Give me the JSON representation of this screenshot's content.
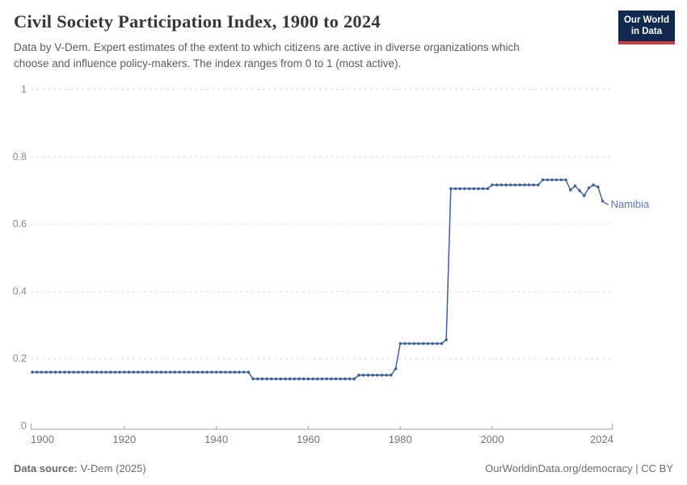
{
  "header": {
    "title": "Civil Society Participation Index, 1900 to 2024",
    "subtitle_lines": [
      "Data by V-Dem. Expert estimates of the extent to which citizens are active in diverse organizations which",
      "choose and influence policy-makers. The index ranges from 0 to 1 (most active)."
    ]
  },
  "logo": {
    "line1": "Our World",
    "line2": "in Data",
    "bg_color": "#0f2a4e",
    "accent_color": "#cc3b44"
  },
  "chart_data": {
    "type": "line",
    "title": "Civil Society Participation Index, 1900 to 2024",
    "xlim": [
      1900,
      2024
    ],
    "ylim": [
      0,
      1
    ],
    "xticks": [
      1900,
      1920,
      1940,
      1960,
      1980,
      2000,
      2024
    ],
    "yticks": [
      0,
      0.2,
      0.4,
      0.6,
      0.8,
      1
    ],
    "grid": "horizontal-dashed",
    "legend_position": "end-of-line-label",
    "series": [
      {
        "name": "Namibia",
        "color": "#40609c",
        "label_color": "#5b7ab6",
        "runs_format": "[start_year, end_year, value]",
        "runs": [
          [
            1900,
            1947,
            0.16
          ],
          [
            1948,
            1970,
            0.14
          ],
          [
            1971,
            1978,
            0.151
          ],
          [
            1979,
            1979,
            0.17
          ],
          [
            1980,
            1989,
            0.245
          ],
          [
            1990,
            1990,
            0.256
          ],
          [
            1991,
            1999,
            0.705
          ],
          [
            2000,
            2010,
            0.716
          ],
          [
            2011,
            2016,
            0.731
          ],
          [
            2017,
            2017,
            0.701
          ],
          [
            2018,
            2018,
            0.713
          ],
          [
            2019,
            2019,
            0.699
          ],
          [
            2020,
            2020,
            0.684
          ],
          [
            2021,
            2021,
            0.707
          ],
          [
            2022,
            2022,
            0.716
          ],
          [
            2023,
            2023,
            0.71
          ],
          [
            2024,
            2024,
            0.668
          ]
        ]
      }
    ]
  },
  "footer": {
    "source_label": "Data source:",
    "source_value": "V-Dem (2025)",
    "license": "OurWorldinData.org/democracy | CC BY"
  }
}
